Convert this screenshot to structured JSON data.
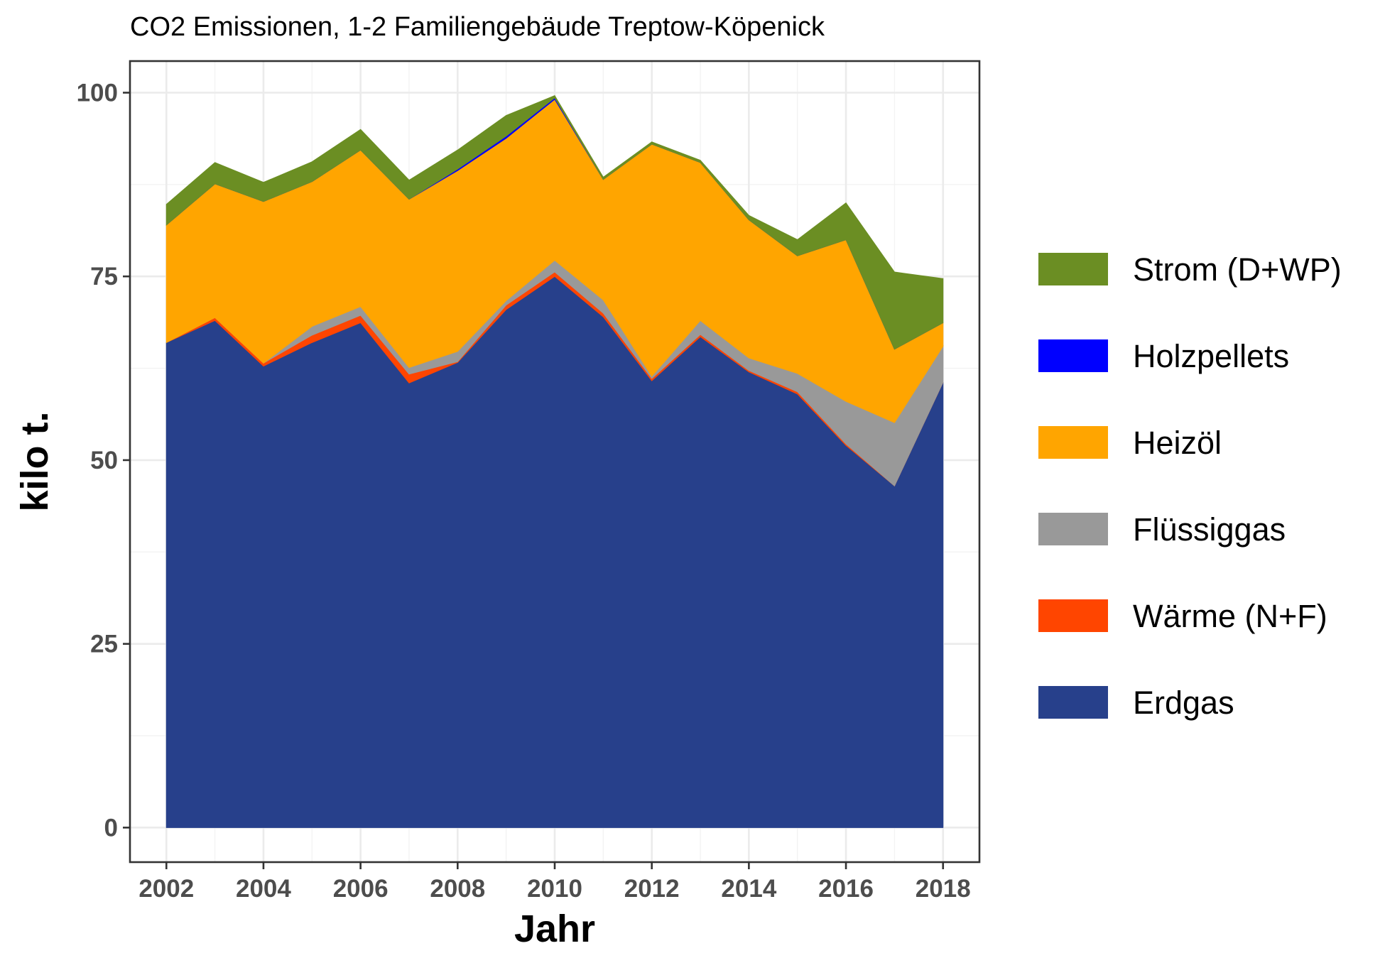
{
  "chart_data": {
    "type": "area",
    "stacked": true,
    "title": "CO2 Emissionen, 1-2 Familiengebäude Treptow-Köpenick",
    "xlabel": "Jahr",
    "ylabel": "kilo t.",
    "xlim": [
      2001.25,
      2018.75
    ],
    "ylim": [
      -4.7,
      104.3
    ],
    "x_ticks": [
      "2002",
      "2004",
      "2006",
      "2008",
      "2010",
      "2012",
      "2014",
      "2016",
      "2018"
    ],
    "y_ticks": [
      "0",
      "25",
      "50",
      "75",
      "100"
    ],
    "grid": true,
    "legend_position": "right",
    "x": [
      2002,
      2003,
      2004,
      2005,
      2006,
      2007,
      2008,
      2009,
      2010,
      2011,
      2012,
      2013,
      2014,
      2015,
      2016,
      2017,
      2018
    ],
    "series": [
      {
        "name": "Erdgas",
        "color": "#27408b",
        "values": [
          66.0,
          69.0,
          62.8,
          66.0,
          68.7,
          60.5,
          63.3,
          70.5,
          75.0,
          69.5,
          60.8,
          66.8,
          62.0,
          59.0,
          52.0,
          46.5,
          60.6
        ]
      },
      {
        "name": "Wärme (N+F)",
        "color": "#ff4500",
        "values": [
          0.0,
          0.4,
          0.4,
          1.0,
          1.0,
          1.2,
          0.1,
          0.6,
          0.6,
          0.5,
          0.3,
          0.3,
          0.2,
          0.3,
          0.2,
          0.0,
          0.0
        ]
      },
      {
        "name": "Flüssiggas",
        "color": "#999999",
        "values": [
          0.0,
          0.0,
          0.0,
          1.2,
          1.2,
          0.9,
          1.4,
          0.6,
          1.6,
          1.8,
          0.3,
          1.9,
          1.7,
          2.5,
          5.8,
          8.6,
          4.9
        ]
      },
      {
        "name": "Heizöl",
        "color": "#ffa500",
        "values": [
          16.0,
          18.2,
          22.0,
          19.7,
          21.3,
          22.9,
          24.6,
          22.1,
          21.9,
          16.4,
          31.6,
          21.5,
          18.8,
          16.0,
          22.0,
          10.0,
          3.2
        ]
      },
      {
        "name": "Holzpellets",
        "color": "#0000ff",
        "values": [
          0.0,
          0.0,
          0.0,
          0.0,
          0.0,
          0.0,
          0.2,
          0.3,
          0.2,
          0.0,
          0.0,
          0.0,
          0.0,
          0.0,
          0.0,
          0.0,
          0.0
        ]
      },
      {
        "name": "Strom (D+WP)",
        "color": "#6b8e23",
        "values": [
          2.8,
          2.9,
          2.6,
          2.7,
          2.8,
          2.6,
          2.6,
          2.8,
          0.3,
          0.3,
          0.3,
          0.3,
          0.6,
          2.2,
          5.0,
          10.5,
          6.0
        ]
      }
    ]
  }
}
